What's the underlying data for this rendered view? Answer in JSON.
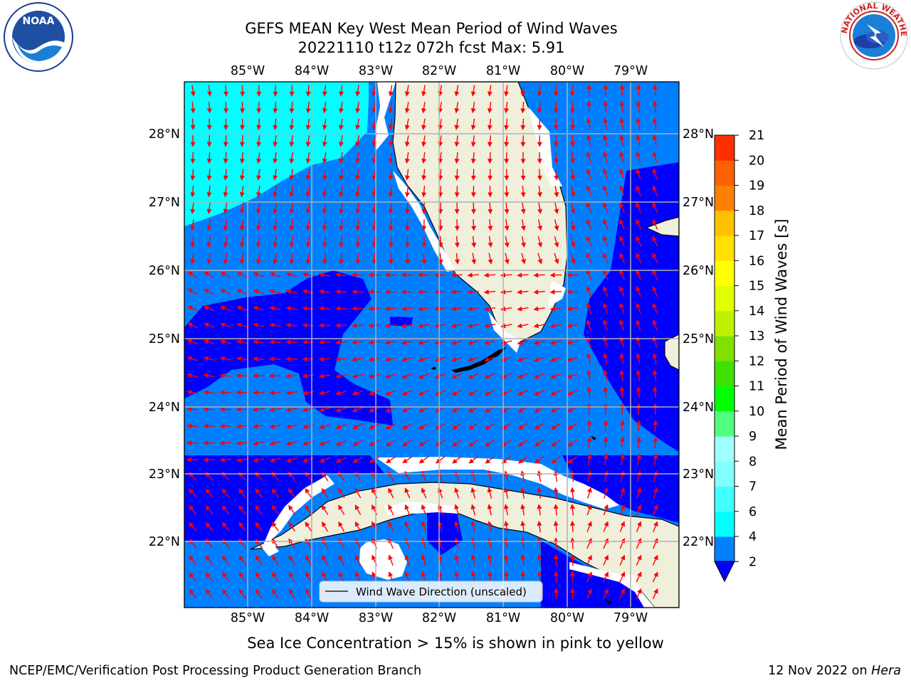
{
  "title": {
    "line1": "GEFS MEAN Key West Mean Period of Wind Waves",
    "line2": "20221110 t12z 072h fcst   Max: 5.91"
  },
  "map": {
    "lon_labels": [
      "85°W",
      "84°W",
      "83°W",
      "82°W",
      "81°W",
      "80°W",
      "79°W"
    ],
    "lat_labels": [
      "28°N",
      "27°N",
      "26°N",
      "25°N",
      "24°N",
      "23°N",
      "22°N"
    ],
    "extent": {
      "lon_min": -86.0,
      "lon_max": -78.3,
      "lat_min": 21.0,
      "lat_max": 28.8
    },
    "colors": {
      "ocean_low": "#0080ff",
      "ocean_lowest": "#0000ff",
      "ocean_cyan": "#00ffff",
      "land": "#efefdc",
      "gridlines": "#b0b0b0",
      "arrows": "#ff0000"
    },
    "legend_label": "Wind Wave Direction (unscaled)"
  },
  "colorbar": {
    "label": "Mean Period of Wind Waves [s]",
    "ticks": [
      "2",
      "4",
      "6",
      "7",
      "8",
      "9",
      "10",
      "11",
      "12",
      "13",
      "14",
      "15",
      "16",
      "17",
      "18",
      "19",
      "20",
      "21"
    ],
    "colors": [
      "#0080ff",
      "#00ffff",
      "#40ffff",
      "#80ffff",
      "#a0ffff",
      "#50ff80",
      "#00ff00",
      "#40e000",
      "#80e000",
      "#c0f000",
      "#e0ff00",
      "#ffff00",
      "#ffe000",
      "#ffc000",
      "#ff8000",
      "#ff6000",
      "#ff3000",
      "#ff0000"
    ],
    "extend_color": "#0000ff"
  },
  "footnote": "Sea Ice Concentration > 15% is shown in pink to yellow",
  "credit": "NCEP/EMC/Verification Post Processing Product Generation Branch",
  "date": {
    "text": "12 Nov 2022 on",
    "machine": "Hera"
  },
  "logos": {
    "left": {
      "name": "NOAA"
    },
    "right": {
      "name": "NATIONAL WEATHER SERVICE"
    }
  }
}
